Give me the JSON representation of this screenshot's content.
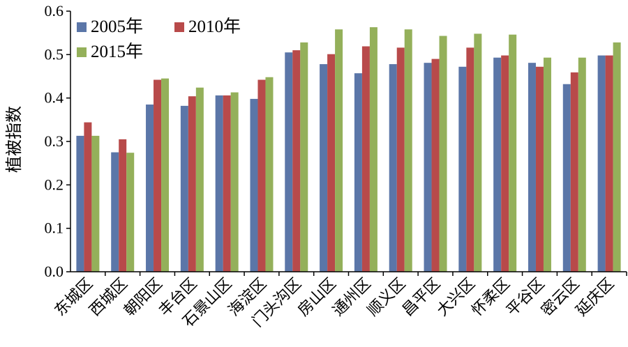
{
  "chart_data": {
    "type": "bar",
    "ylabel": "植被指数",
    "xlabel": "",
    "ylim": [
      0,
      0.6
    ],
    "yticks": [
      "0.0",
      "0.1",
      "0.2",
      "0.3",
      "0.4",
      "0.5",
      "0.6"
    ],
    "grid": false,
    "legend_position": "top-left",
    "categories": [
      "东城区",
      "西城区",
      "朝阳区",
      "丰台区",
      "石景山区",
      "海淀区",
      "门头沟区",
      "房山区",
      "通州区",
      "顺义区",
      "昌平区",
      "大兴区",
      "怀柔区",
      "平谷区",
      "密云区",
      "延庆区"
    ],
    "series": [
      {
        "name": "2005年",
        "color": "#5B76A8",
        "values": [
          0.313,
          0.275,
          0.385,
          0.382,
          0.406,
          0.398,
          0.505,
          0.478,
          0.457,
          0.478,
          0.481,
          0.472,
          0.493,
          0.481,
          0.432,
          0.498
        ]
      },
      {
        "name": "2010年",
        "color": "#B84A4A",
        "values": [
          0.344,
          0.305,
          0.442,
          0.404,
          0.406,
          0.442,
          0.51,
          0.501,
          0.519,
          0.516,
          0.49,
          0.516,
          0.498,
          0.472,
          0.459,
          0.498
        ]
      },
      {
        "name": "2015年",
        "color": "#94B05A",
        "values": [
          0.313,
          0.274,
          0.445,
          0.424,
          0.413,
          0.448,
          0.528,
          0.558,
          0.563,
          0.558,
          0.543,
          0.548,
          0.546,
          0.493,
          0.493,
          0.528
        ]
      }
    ]
  }
}
